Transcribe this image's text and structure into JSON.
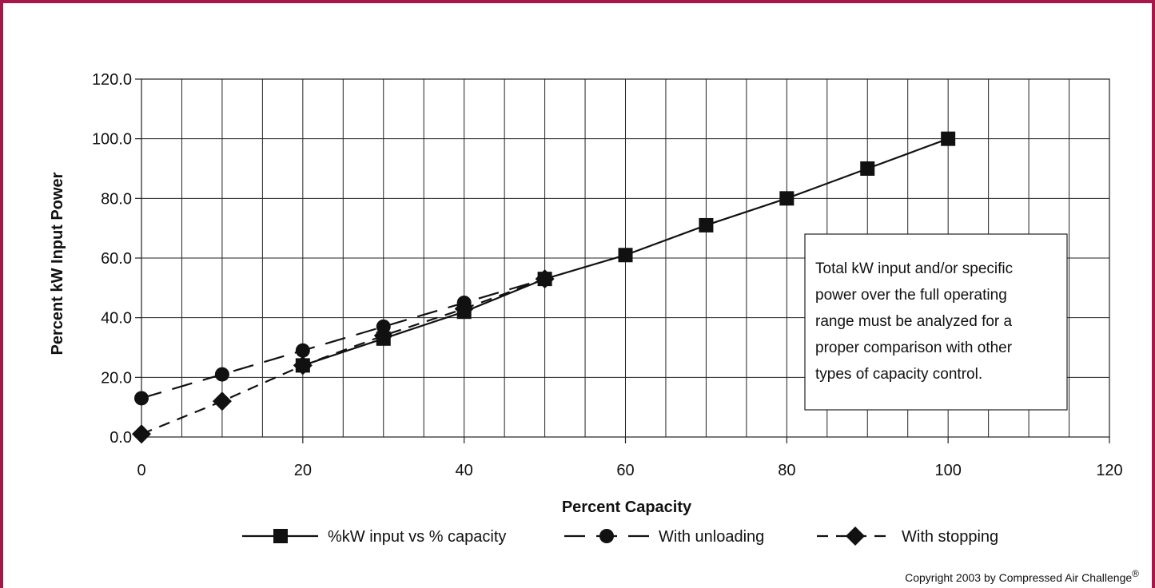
{
  "chart_data": {
    "type": "line",
    "xlabel": "Percent Capacity",
    "ylabel": "Percent kW Input Power",
    "xlim": [
      0,
      120
    ],
    "ylim": [
      0,
      120
    ],
    "x_ticks": [
      "0",
      "20",
      "40",
      "60",
      "80",
      "100",
      "120"
    ],
    "y_ticks": [
      "0.0",
      "20.0",
      "40.0",
      "60.0",
      "80.0",
      "100.0",
      "120.0"
    ],
    "grid": true,
    "legend_position": "bottom",
    "series": [
      {
        "name": "%kW input vs % capacity",
        "marker": "square",
        "line_style": "solid",
        "x": [
          20,
          30,
          40,
          50,
          60,
          70,
          80,
          90,
          100
        ],
        "y": [
          24,
          33,
          42,
          53,
          61,
          71,
          80,
          90,
          100
        ]
      },
      {
        "name": "With unloading",
        "marker": "circle",
        "line_style": "long-dash",
        "x": [
          0,
          10,
          20,
          30,
          40,
          50
        ],
        "y": [
          13,
          21,
          29,
          37,
          45,
          53
        ]
      },
      {
        "name": "With stopping",
        "marker": "diamond",
        "line_style": "short-dash",
        "x": [
          0,
          10,
          20,
          30,
          40,
          50
        ],
        "y": [
          1,
          12,
          24,
          34,
          43,
          53
        ]
      }
    ],
    "annotation": [
      "Total kW input and/or specific",
      "power over the full operating",
      "range must be analyzed for a",
      "proper comparison with other",
      "types of capacity control."
    ],
    "copyright": "Copyright 2003 by Compressed Air Challenge",
    "copyright_mark": "®"
  },
  "colors": {
    "frame": "#a8174a",
    "series": "#111111",
    "grid": "#222222"
  }
}
